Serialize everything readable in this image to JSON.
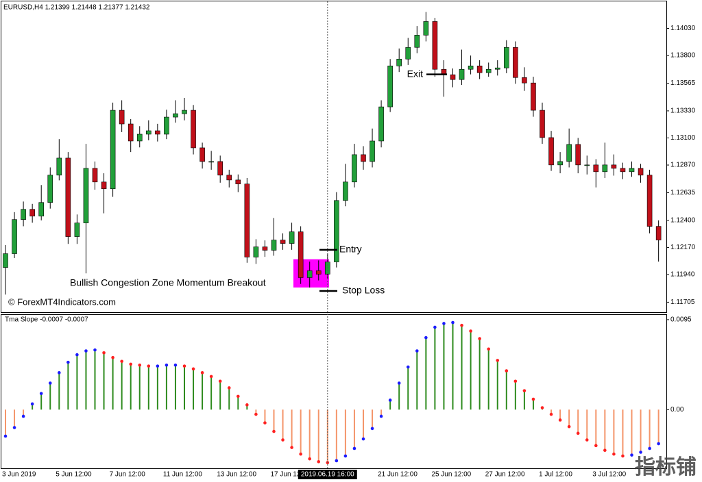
{
  "chart_data": [
    {
      "type": "candlestick",
      "title": "EURUSD,H4  1.21399 1.21448 1.21377 1.21432",
      "watermark": "© ForexMT4Indicators.com",
      "up_color": "#22a03a",
      "down_color": "#c0101a",
      "ylim": [
        1.1162,
        1.1426
      ],
      "yticks": [
        {
          "value": 1.1403,
          "label": "1.14030"
        },
        {
          "value": 1.138,
          "label": "1.13800"
        },
        1.13565,
        {
          "value": 1.1333,
          "label": "1.13330"
        },
        {
          "value": 1.131,
          "label": "1.13100"
        },
        {
          "value": 1.1287,
          "label": "1.12870"
        },
        1.12635,
        {
          "value": 1.124,
          "label": "1.12400"
        },
        {
          "value": 1.1217,
          "label": "1.12170"
        },
        {
          "value": 1.1194,
          "label": "1.11940"
        },
        1.11705
      ],
      "open": [
        1.12,
        1.12117,
        1.12407,
        1.12494,
        1.12436,
        1.12552,
        1.12784,
        1.12929,
        1.12262,
        1.12378,
        1.12842,
        1.12726,
        1.12668,
        1.13335,
        1.13219,
        1.13074,
        1.13132,
        1.13161,
        1.13132,
        1.13277,
        1.13306,
        1.13335,
        1.13016,
        1.129,
        1.129,
        1.12784,
        1.12743,
        1.12709,
        1.12088,
        1.12175,
        1.12146,
        1.12233,
        1.12204,
        1.12303,
        1.11914,
        1.11972,
        1.11943,
        1.12047,
        1.12569,
        1.12726,
        1.12958,
        1.129,
        1.13074,
        1.13364,
        1.13712,
        1.1377,
        1.13869,
        1.13973,
        1.14089,
        1.13683,
        1.13637,
        1.13596,
        1.13683,
        1.13712,
        1.13654,
        1.13683,
        1.13695,
        1.13869,
        1.13613,
        1.13567,
        1.13335,
        1.13103,
        1.12871,
        1.129,
        1.13045,
        1.12871,
        1.12871,
        1.12813,
        1.12871,
        1.12842,
        1.12813,
        1.12842,
        1.12784,
        1.12349
      ],
      "high": [
        1.1219,
        1.1247,
        1.1256,
        1.1254,
        1.127,
        1.1285,
        1.1309,
        1.1298,
        1.1245,
        1.1305,
        1.129,
        1.128,
        1.134,
        1.1342,
        1.1326,
        1.132,
        1.1325,
        1.1322,
        1.1334,
        1.1342,
        1.1344,
        1.1338,
        1.1306,
        1.1299,
        1.1295,
        1.1283,
        1.1279,
        1.1276,
        1.1224,
        1.1223,
        1.1242,
        1.1229,
        1.1238,
        1.1235,
        1.1205,
        1.1206,
        1.1212,
        1.1264,
        1.1288,
        1.1305,
        1.1303,
        1.1318,
        1.1342,
        1.1377,
        1.1386,
        1.1395,
        1.1405,
        1.1417,
        1.1412,
        1.1376,
        1.1369,
        1.1385,
        1.138,
        1.1376,
        1.1374,
        1.1376,
        1.1393,
        1.1392,
        1.137,
        1.1362,
        1.134,
        1.1316,
        1.1298,
        1.1318,
        1.131,
        1.1295,
        1.1292,
        1.1306,
        1.1296,
        1.1289,
        1.129,
        1.1288,
        1.1283,
        1.124
      ],
      "low": [
        1.1177,
        1.1208,
        1.1235,
        1.1238,
        1.124,
        1.125,
        1.1274,
        1.122,
        1.122,
        1.1195,
        1.1266,
        1.1246,
        1.126,
        1.1315,
        1.1298,
        1.1302,
        1.1308,
        1.1307,
        1.1309,
        1.1323,
        1.1325,
        1.1296,
        1.1284,
        1.1283,
        1.1272,
        1.1268,
        1.1264,
        1.1204,
        1.1203,
        1.1209,
        1.121,
        1.1215,
        1.1215,
        1.1186,
        1.1183,
        1.1189,
        1.119,
        1.12,
        1.1252,
        1.1268,
        1.1283,
        1.1285,
        1.1302,
        1.1332,
        1.1366,
        1.1372,
        1.1382,
        1.1392,
        1.1362,
        1.1345,
        1.1353,
        1.1355,
        1.1364,
        1.136,
        1.1362,
        1.1363,
        1.1365,
        1.1356,
        1.135,
        1.1328,
        1.1305,
        1.1282,
        1.128,
        1.1285,
        1.128,
        1.1279,
        1.1268,
        1.1276,
        1.1278,
        1.1275,
        1.1277,
        1.1272,
        1.1229,
        1.1205
      ],
      "close": [
        1.12117,
        1.12407,
        1.12494,
        1.12436,
        1.12552,
        1.12784,
        1.12929,
        1.12262,
        1.12378,
        1.12842,
        1.12726,
        1.12668,
        1.13335,
        1.13219,
        1.13074,
        1.13132,
        1.13161,
        1.13132,
        1.13277,
        1.13306,
        1.13335,
        1.13016,
        1.129,
        1.129,
        1.12784,
        1.12743,
        1.12709,
        1.12088,
        1.12175,
        1.12146,
        1.12233,
        1.12204,
        1.12303,
        1.11914,
        1.11972,
        1.11943,
        1.12047,
        1.12569,
        1.12726,
        1.12958,
        1.129,
        1.13074,
        1.13364,
        1.13712,
        1.1377,
        1.13869,
        1.13973,
        1.14089,
        1.13683,
        1.13637,
        1.13596,
        1.13683,
        1.13712,
        1.13654,
        1.13683,
        1.13695,
        1.13869,
        1.13613,
        1.13567,
        1.13335,
        1.13103,
        1.12871,
        1.129,
        1.13045,
        1.12871,
        1.12871,
        1.12813,
        1.12871,
        1.12842,
        1.12813,
        1.12842,
        1.12784,
        1.12349,
        1.12233
      ],
      "zone": {
        "label": "Bullish Congestion Zone Momentum Breakout",
        "top": 1.1207,
        "bottom": 1.1183,
        "color": "#ff00ff"
      },
      "annotations": [
        {
          "text": "Entry",
          "price": 1.1215
        },
        {
          "text": "Stop Loss",
          "price": 1.118
        },
        {
          "text": "Exit",
          "price": 1.1364
        }
      ]
    },
    {
      "type": "bar",
      "title": "Tma Slope -0.0007 -0.0007",
      "positive_color": "#2e8b1e",
      "negative_color": "#f4956a",
      "rising_dot_color": "#1c1cff",
      "falling_dot_color": "#ff2020",
      "ylim": [
        -0.0062,
        0.01
      ],
      "yticks": [
        0.0095,
        {
          "value": 0,
          "label": "0.00"
        }
      ],
      "crosshair_index": 36,
      "categories": [
        "3 Jun 2019",
        null,
        null,
        null,
        null,
        null,
        "5 Jun 12:00",
        null,
        null,
        null,
        null,
        null,
        "7 Jun 12:00",
        null,
        null,
        null,
        null,
        null,
        "11 Jun 12:00",
        null,
        null,
        null,
        null,
        null,
        "13 Jun 12:00",
        null,
        null,
        null,
        null,
        null,
        "17 Jun 12:00",
        null,
        null,
        null,
        null,
        null,
        "2019.06.19 16:00",
        null,
        null,
        null,
        null,
        null,
        "21 Jun 12:00",
        null,
        null,
        null,
        null,
        null,
        "25 Jun 12:00",
        null,
        null,
        null,
        null,
        null,
        "27 Jun 12:00",
        null,
        null,
        null,
        null,
        null,
        "1 Jul 12:00",
        null,
        null,
        null,
        null,
        null,
        "3 Jul 12:00",
        null,
        null,
        null,
        null,
        null,
        null,
        null
      ],
      "values": [
        -0.0028,
        -0.0019,
        -0.0007,
        0.0006,
        0.0017,
        0.0028,
        0.0039,
        0.005,
        0.0058,
        0.0062,
        0.0063,
        0.006,
        0.0055,
        0.0051,
        0.0048,
        0.0047,
        0.0046,
        0.0046,
        0.0047,
        0.0047,
        0.0046,
        0.0043,
        0.0039,
        0.0035,
        0.003,
        0.0023,
        0.0014,
        0.0005,
        -0.0005,
        -0.0014,
        -0.0023,
        -0.0032,
        -0.004,
        -0.0047,
        -0.0052,
        -0.0055,
        -0.0056,
        -0.0054,
        -0.0049,
        -0.0041,
        -0.0031,
        -0.002,
        -0.0007,
        0.001,
        0.0028,
        0.0045,
        0.0062,
        0.0076,
        0.0087,
        0.0091,
        0.0092,
        0.0089,
        0.0083,
        0.0075,
        0.0064,
        0.0052,
        0.0041,
        0.003,
        0.002,
        0.0011,
        0.0002,
        -0.0005,
        -0.0011,
        -0.0018,
        -0.0025,
        -0.0032,
        -0.0038,
        -0.0043,
        -0.0047,
        -0.0049,
        -0.0048,
        -0.0045,
        -0.0041,
        -0.0036
      ]
    }
  ],
  "corner_mark": "指标铺"
}
